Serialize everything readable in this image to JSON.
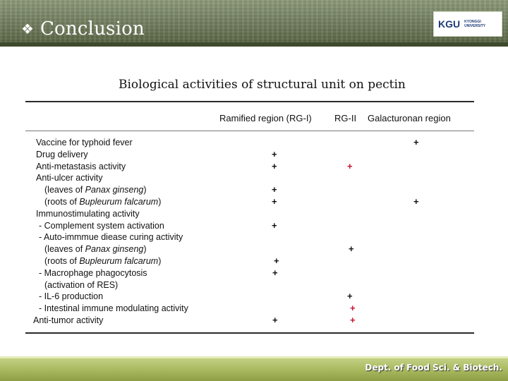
{
  "header": {
    "bullet_icon": "diamond-bullet-icon",
    "title": "Conclusion",
    "logo": {
      "mark": "KGU",
      "sub_line1": "KYONGGI",
      "sub_line2": "UNIVERSITY"
    }
  },
  "subtitle": "Biological activities of structural unit on pectin",
  "columns": [
    "Ramified region (RG-I)",
    "RG-II",
    "Galacturonan region"
  ],
  "rows": [
    {
      "label": "Vaccine for typhoid fever",
      "rg1": "",
      "rg2": "",
      "gal": "+"
    },
    {
      "label": "Drug delivery",
      "rg1": "+",
      "rg2": "",
      "gal": ""
    },
    {
      "label": "Anti-metastasis activity",
      "rg1": "+",
      "rg2": "+",
      "gal": ""
    },
    {
      "label": "Anti-ulcer activity",
      "rg1": "",
      "rg2": "",
      "gal": ""
    },
    {
      "label_pre": "(leaves of ",
      "label_it": "Panax ginseng",
      "label_post": ")",
      "rg1": "+",
      "rg2": "",
      "gal": ""
    },
    {
      "label_pre": "(roots of ",
      "label_it": "Bupleurum falcarum",
      "label_post": ")",
      "rg1": "+",
      "rg2": "",
      "gal": "+"
    },
    {
      "label": "Immunostimulating activity",
      "rg1": "",
      "rg2": "",
      "gal": ""
    },
    {
      "label": "- Complement system activation",
      "rg1": "+",
      "rg2": "",
      "gal": ""
    },
    {
      "label": "- Auto-immmue diease curing activity",
      "rg1": "",
      "rg2": "",
      "gal": ""
    },
    {
      "label_pre": "(leaves of ",
      "label_it": "Panax ginseng",
      "label_post": ")",
      "rg1": "",
      "rg2": "+",
      "gal": ""
    },
    {
      "label_pre": "(roots of ",
      "label_it": "Bupleurum falcarum",
      "label_post": ")",
      "rg1": "+",
      "rg2": "",
      "gal": ""
    },
    {
      "label": "- Macrophage phagocytosis",
      "rg1": "+",
      "rg2": "",
      "gal": ""
    },
    {
      "label": "(activation of RES)",
      "rg1": "",
      "rg2": "",
      "gal": ""
    },
    {
      "label": "- IL-6 production",
      "rg1": "",
      "rg2": "+",
      "gal": ""
    },
    {
      "label": "- Intestinal immune modulating activity",
      "rg1": "",
      "rg2": "+",
      "gal": ""
    },
    {
      "label": "Anti-tumor activity",
      "rg1": "+",
      "rg2": "+",
      "gal": ""
    }
  ],
  "footer": {
    "text": "Dept. of Food Sci. & Biotech."
  },
  "colors": {
    "mark_black": "#111111",
    "mark_red": "#c8102e",
    "header_green": "#6f7b5c",
    "footer_green": "#a9b95f"
  }
}
